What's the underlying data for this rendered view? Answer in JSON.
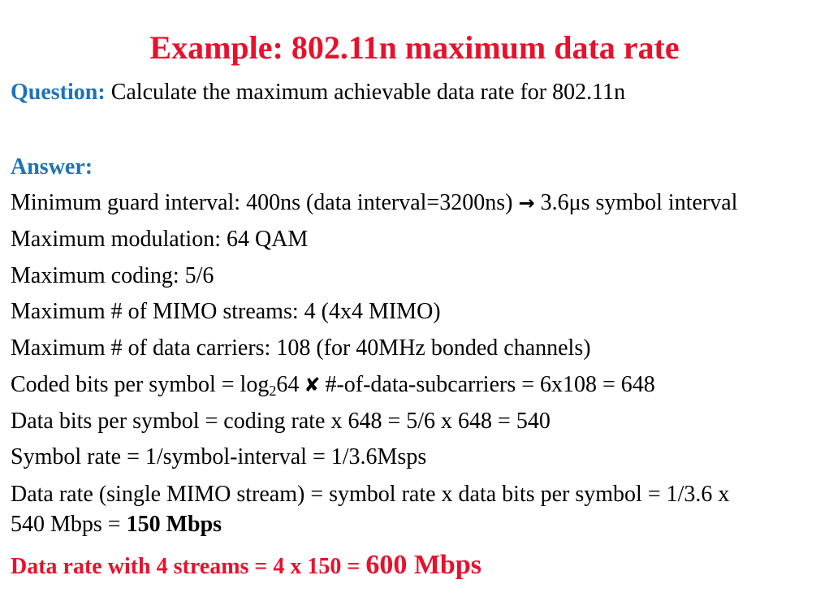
{
  "colors": {
    "title": "#e8112d",
    "heading_blue": "#1f72b6",
    "body": "#000000",
    "highlight_red": "#e8112d"
  },
  "slide": {
    "title": "Example: 802.11n maximum data rate",
    "question_label": "Question:",
    "question_text": " Calculate the maximum achievable data rate for 802.11n",
    "answer_label": "Answer:",
    "lines": {
      "guard_a": "Minimum guard interval: 400ns (data interval=3200ns) ",
      "arrow_icon": "→",
      "guard_b": " 3.6μs symbol interval",
      "modulation": "Maximum modulation: 64 QAM",
      "coding": "Maximum coding: 5/6",
      "mimo": "Maximum # of MIMO streams: 4 (4x4 MIMO)",
      "carriers": "Maximum # of data carriers: 108 (for 40MHz bonded channels)",
      "coded_a": "Coded bits per symbol = log",
      "coded_sub": "2",
      "coded_b": "64",
      "cross_icon": "✘",
      "coded_c": "#-of-data-subcarriers = 6x108 = 648",
      "databits": "Data bits per symbol = coding rate x 648 = 5/6 x 648 = 540",
      "symbolrate": "Symbol rate = 1/symbol-interval = 1/3.6Msps",
      "datarate_1": "Data rate (single MIMO stream) = symbol rate x  data bits per symbol = 1/3.6 x",
      "datarate_2a": "540 Mbps = ",
      "datarate_2b": "150 Mbps",
      "final_a": "Data rate with 4 streams = 4 x 150 = ",
      "final_b": "600 Mbps"
    }
  }
}
